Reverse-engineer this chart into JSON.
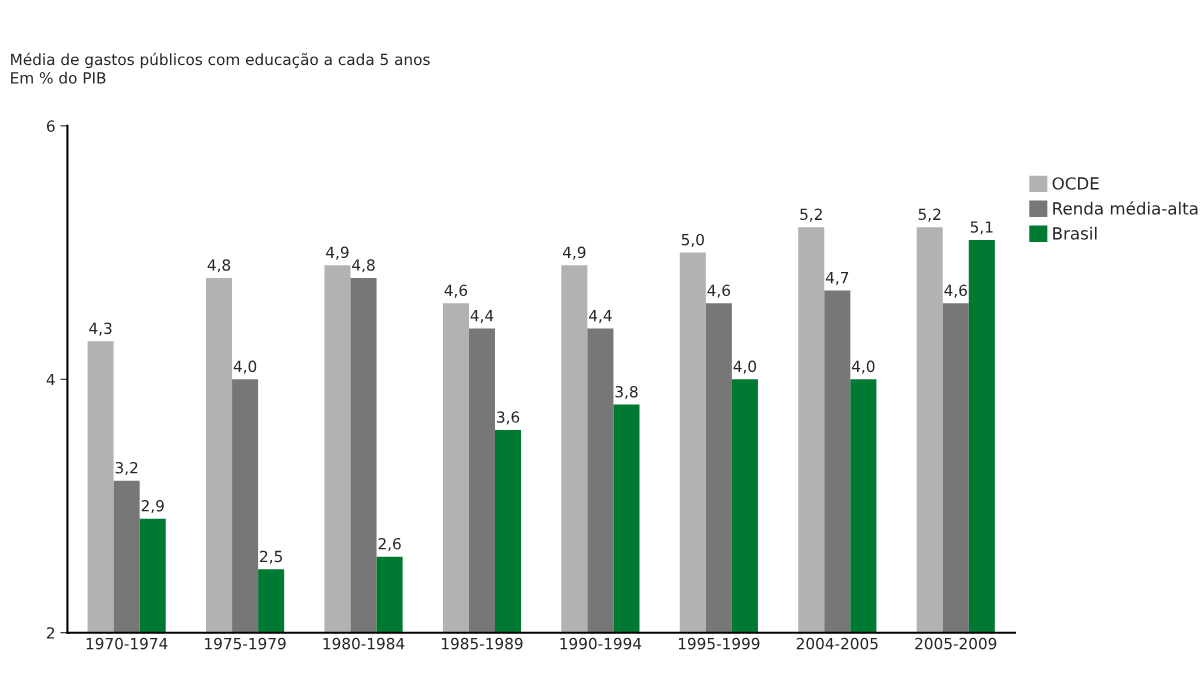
{
  "chart_data": {
    "type": "bar",
    "title": "Média de gastos públicos com educação a cada 5 anos",
    "subtitle": "Em % do PIB",
    "categories": [
      "1970-1974",
      "1975-1979",
      "1980-1984",
      "1985-1989",
      "1990-1994",
      "1995-1999",
      "2004-2005",
      "2005-2009"
    ],
    "series": [
      {
        "name": "OCDE",
        "color": "#b2b2b2",
        "values": [
          4.3,
          4.8,
          4.9,
          4.6,
          4.9,
          5.0,
          5.2,
          5.2
        ],
        "value_labels": [
          "4,3",
          "4,8",
          "4,9",
          "4,6",
          "4,9",
          "5,0",
          "5,2",
          "5,2"
        ]
      },
      {
        "name": "Renda média-alta",
        "color": "#777777",
        "values": [
          3.2,
          4.0,
          4.8,
          4.4,
          4.4,
          4.6,
          4.7,
          4.6
        ],
        "value_labels": [
          "3,2",
          "4,0",
          "4,8",
          "4,4",
          "4,4",
          "4,6",
          "4,7",
          "4,6"
        ]
      },
      {
        "name": "Brasil",
        "color": "#007a33",
        "values": [
          2.9,
          2.5,
          2.6,
          3.6,
          3.8,
          4.0,
          4.0,
          5.1
        ],
        "value_labels": [
          "2,9",
          "2,5",
          "2,6",
          "3,6",
          "3,8",
          "4,0",
          "4,0",
          "5,1"
        ]
      }
    ],
    "ylim": [
      2,
      6
    ],
    "yticks": [
      2,
      4,
      6
    ],
    "grid": false,
    "legend": "right"
  }
}
